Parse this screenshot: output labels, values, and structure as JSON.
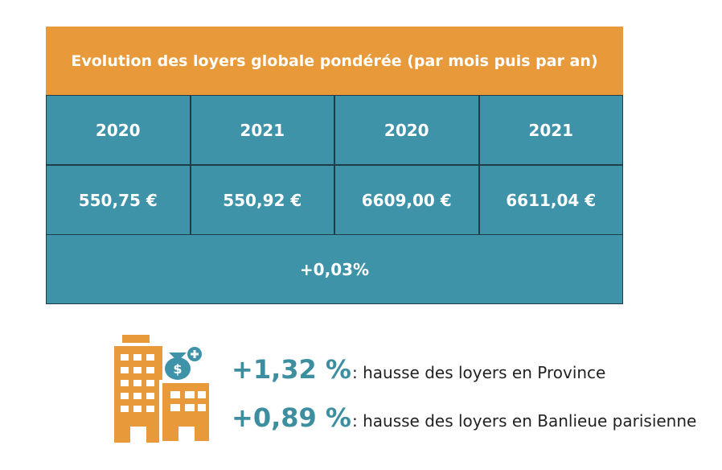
{
  "table": {
    "title": "Evolution des loyers globale pondérée (par mois puis par an)",
    "headers": [
      "2020",
      "2021",
      "2020",
      "2021"
    ],
    "values": [
      "550,75 €",
      "550,92 €",
      "6609,00 €",
      "6611,04 €"
    ],
    "footer": "+0,03%"
  },
  "stats": [
    {
      "value": "+1,32 %",
      "label": ": hausse des loyers en Province"
    },
    {
      "value": "+0,89 %",
      "label": ": hausse des loyers en Banlieue parisienne"
    }
  ]
}
